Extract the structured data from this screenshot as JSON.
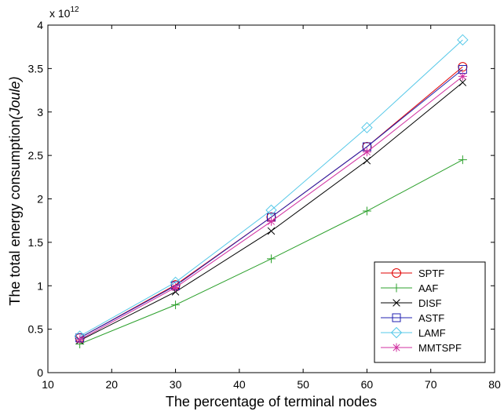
{
  "chart_data": {
    "type": "line",
    "xlabel": "The percentage of terminal nodes",
    "ylabel_main": "The total energy consumption",
    "ylabel_unit": "(Joule)",
    "y_exponent_base": "x 10",
    "y_exponent_power": "12",
    "xlim": [
      10,
      80
    ],
    "ylim": [
      0,
      4
    ],
    "x_ticks": [
      10,
      20,
      30,
      40,
      50,
      60,
      70,
      80
    ],
    "y_ticks": [
      0,
      0.5,
      1,
      1.5,
      2,
      2.5,
      3,
      3.5,
      4
    ],
    "y_tick_labels": [
      "0",
      "0.5",
      "1",
      "1.5",
      "2",
      "2.5",
      "3",
      "3.5",
      "4"
    ],
    "legend_position": "bottom-right",
    "x": [
      15,
      30,
      45,
      60,
      75
    ],
    "series": [
      {
        "name": "SPTF",
        "color": "#e00000",
        "marker": "circle",
        "values": [
          0.4,
          1.01,
          1.79,
          2.6,
          3.52
        ]
      },
      {
        "name": "AAF",
        "color": "#2ca02c",
        "marker": "plus",
        "values": [
          0.33,
          0.78,
          1.31,
          1.86,
          2.45
        ]
      },
      {
        "name": "DISF",
        "color": "#000000",
        "marker": "x",
        "values": [
          0.37,
          0.93,
          1.63,
          2.44,
          3.34
        ]
      },
      {
        "name": "ASTF",
        "color": "#2020b0",
        "marker": "square",
        "values": [
          0.4,
          1.0,
          1.79,
          2.6,
          3.49
        ]
      },
      {
        "name": "LAMF",
        "color": "#55c8e8",
        "marker": "diamond",
        "values": [
          0.42,
          1.04,
          1.87,
          2.82,
          3.83
        ]
      },
      {
        "name": "MMTSPF",
        "color": "#d030a0",
        "marker": "asterisk",
        "values": [
          0.38,
          0.98,
          1.74,
          2.54,
          3.41
        ]
      }
    ]
  }
}
